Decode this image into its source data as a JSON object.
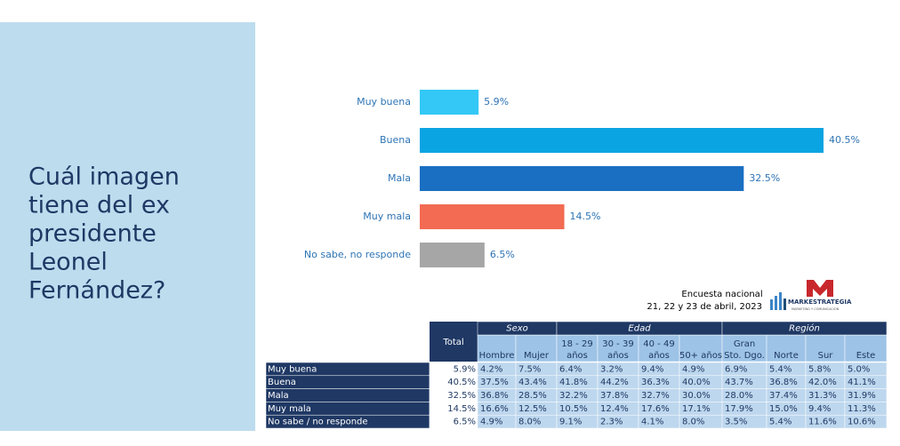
{
  "slide_title": [
    "Cuál imagen",
    "tiene del ex",
    "presidente",
    "Leonel",
    "Fernández?"
  ],
  "chart_data": {
    "type": "bar",
    "orientation": "horizontal",
    "categories": [
      "Muy buena",
      "Buena",
      "Mala",
      "Muy mala",
      "No sabe, no responde"
    ],
    "values": [
      5.9,
      40.5,
      32.5,
      14.5,
      6.5
    ],
    "value_labels": [
      "5.9%",
      "40.5%",
      "32.5%",
      "14.5%",
      "6.5%"
    ],
    "colors": [
      "#33c8f6",
      "#0ba4e2",
      "#1b6fc2",
      "#f26b52",
      "#a6a6a6"
    ]
  },
  "source": [
    "Encuesta nacional",
    "21, 22 y 23 de abril, 2023"
  ],
  "logo": {
    "name": "MARKESTRATEGIA",
    "tagline": "MARKETING Y COMUNICACIÓN"
  },
  "table": {
    "total_header": "Total",
    "groups": [
      {
        "label": "Sexo",
        "columns": [
          [
            "Hombre"
          ],
          [
            "Mujer"
          ]
        ]
      },
      {
        "label": "Edad",
        "columns": [
          [
            "18 - 29",
            "años"
          ],
          [
            "30 - 39",
            "años"
          ],
          [
            "40 - 49",
            "años"
          ],
          [
            "50+ años"
          ]
        ]
      },
      {
        "label": "Región",
        "columns": [
          [
            "Gran",
            "Sto. Dgo."
          ],
          [
            "Norte"
          ],
          [
            "Sur"
          ],
          [
            "Este"
          ]
        ]
      }
    ],
    "rows": [
      {
        "label": "Muy buena",
        "cells": [
          "5.9%",
          "4.2%",
          "7.5%",
          "6.4%",
          "3.2%",
          "9.4%",
          "4.9%",
          "6.9%",
          "5.4%",
          "5.8%",
          "5.0%"
        ]
      },
      {
        "label": "Buena",
        "cells": [
          "40.5%",
          "37.5%",
          "43.4%",
          "41.8%",
          "44.2%",
          "36.3%",
          "40.0%",
          "43.7%",
          "36.8%",
          "42.0%",
          "41.1%"
        ]
      },
      {
        "label": "Mala",
        "cells": [
          "32.5%",
          "36.8%",
          "28.5%",
          "32.2%",
          "37.8%",
          "32.7%",
          "30.0%",
          "28.0%",
          "37.4%",
          "31.3%",
          "31.9%"
        ]
      },
      {
        "label": "Muy mala",
        "cells": [
          "14.5%",
          "16.6%",
          "12.5%",
          "10.5%",
          "12.4%",
          "17.6%",
          "17.1%",
          "17.9%",
          "15.0%",
          "9.4%",
          "11.3%"
        ]
      },
      {
        "label": "No sabe / no responde",
        "cells": [
          "6.5%",
          "4.9%",
          "8.0%",
          "9.1%",
          "2.3%",
          "4.1%",
          "8.0%",
          "3.5%",
          "5.4%",
          "11.6%",
          "10.6%"
        ]
      }
    ]
  }
}
